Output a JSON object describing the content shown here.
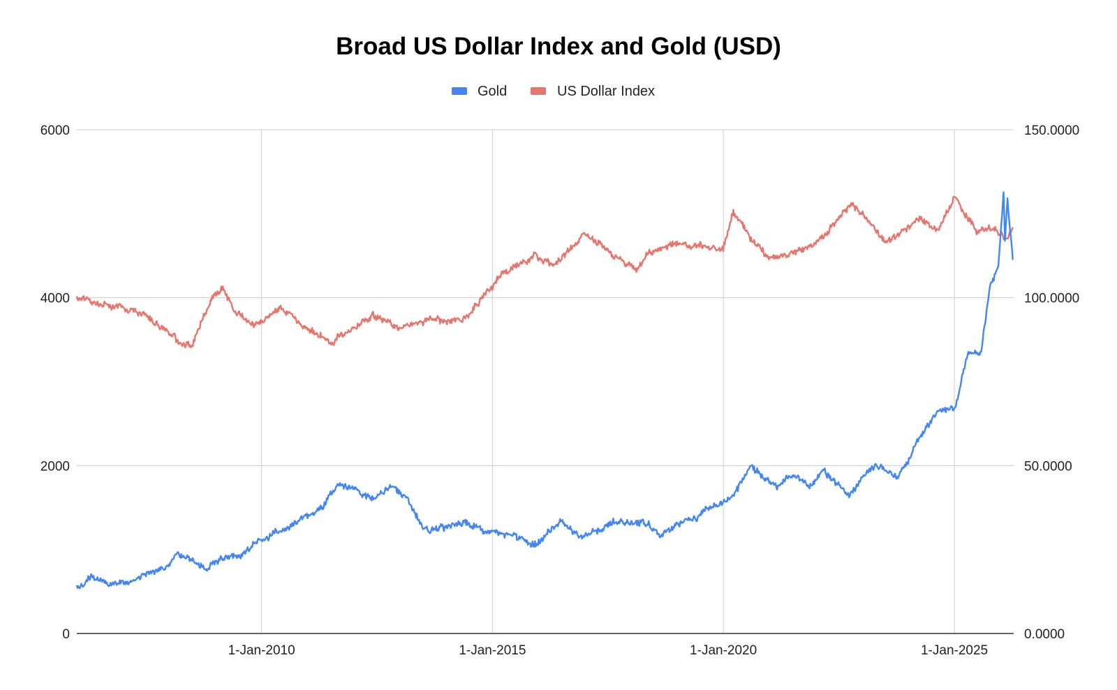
{
  "chart_data": {
    "type": "line",
    "title": "Broad US Dollar Index and Gold (USD)",
    "xlabel": "",
    "ylabel": "",
    "y2label": "",
    "legend_position": "top",
    "grid": true,
    "x_range": [
      "2006-01-01",
      "2026-04-15"
    ],
    "x_ticks": [
      {
        "date": "2010-01-01",
        "label": "1-Jan-2010"
      },
      {
        "date": "2015-01-01",
        "label": "1-Jan-2015"
      },
      {
        "date": "2020-01-01",
        "label": "1-Jan-2020"
      },
      {
        "date": "2025-01-01",
        "label": "1-Jan-2025"
      }
    ],
    "y_left": {
      "range": [
        0,
        6000
      ],
      "ticks": [
        {
          "value": 0,
          "label": "0"
        },
        {
          "value": 2000,
          "label": "2000"
        },
        {
          "value": 4000,
          "label": "4000"
        },
        {
          "value": 6000,
          "label": "6000"
        }
      ]
    },
    "y_right": {
      "range": [
        0,
        150
      ],
      "ticks": [
        {
          "value": 0,
          "label": "0.0000"
        },
        {
          "value": 50,
          "label": "50.0000"
        },
        {
          "value": 100,
          "label": "100.0000"
        },
        {
          "value": 150,
          "label": "150.0000"
        }
      ]
    },
    "series": [
      {
        "name": "Gold",
        "axis": "left",
        "color": "#4285f4",
        "points": [
          [
            "2006-01-01",
            530
          ],
          [
            "2006-05-01",
            680
          ],
          [
            "2006-10-01",
            600
          ],
          [
            "2007-06-01",
            660
          ],
          [
            "2007-12-01",
            800
          ],
          [
            "2008-03-01",
            960
          ],
          [
            "2008-10-15",
            780
          ],
          [
            "2009-03-01",
            920
          ],
          [
            "2009-08-01",
            950
          ],
          [
            "2009-12-01",
            1110
          ],
          [
            "2010-06-01",
            1230
          ],
          [
            "2010-12-01",
            1400
          ],
          [
            "2011-05-01",
            1500
          ],
          [
            "2011-09-01",
            1800
          ],
          [
            "2012-01-01",
            1700
          ],
          [
            "2012-06-01",
            1600
          ],
          [
            "2012-10-01",
            1760
          ],
          [
            "2013-03-01",
            1600
          ],
          [
            "2013-06-30",
            1250
          ],
          [
            "2014-01-01",
            1250
          ],
          [
            "2014-06-01",
            1310
          ],
          [
            "2014-12-01",
            1200
          ],
          [
            "2015-06-01",
            1180
          ],
          [
            "2015-12-15",
            1060
          ],
          [
            "2016-07-01",
            1350
          ],
          [
            "2016-12-15",
            1130
          ],
          [
            "2017-09-01",
            1320
          ],
          [
            "2018-04-01",
            1330
          ],
          [
            "2018-08-15",
            1180
          ],
          [
            "2019-01-01",
            1290
          ],
          [
            "2019-06-01",
            1400
          ],
          [
            "2019-09-01",
            1500
          ],
          [
            "2020-03-01",
            1600
          ],
          [
            "2020-08-01",
            1970
          ],
          [
            "2021-03-01",
            1700
          ],
          [
            "2021-06-01",
            1880
          ],
          [
            "2021-12-01",
            1790
          ],
          [
            "2022-03-01",
            1960
          ],
          [
            "2022-09-15",
            1650
          ],
          [
            "2023-02-01",
            1900
          ],
          [
            "2023-05-01",
            2000
          ],
          [
            "2023-10-01",
            1850
          ],
          [
            "2024-01-01",
            2050
          ],
          [
            "2024-04-01",
            2350
          ],
          [
            "2024-10-01",
            2700
          ],
          [
            "2025-01-01",
            2650
          ],
          [
            "2025-04-15",
            3300
          ],
          [
            "2025-08-01",
            3350
          ],
          [
            "2025-10-15",
            4200
          ],
          [
            "2025-12-15",
            4400
          ],
          [
            "2026-01-25",
            5250
          ],
          [
            "2026-02-05",
            4700
          ],
          [
            "2026-02-25",
            5200
          ],
          [
            "2026-03-15",
            4850
          ],
          [
            "2026-04-08",
            4450
          ]
        ]
      },
      {
        "name": "US Dollar Index",
        "axis": "right",
        "color": "#e8756b",
        "points": [
          [
            "2006-01-01",
            100
          ],
          [
            "2006-06-01",
            98.5
          ],
          [
            "2007-01-01",
            97
          ],
          [
            "2007-06-01",
            95
          ],
          [
            "2008-03-15",
            87
          ],
          [
            "2008-07-01",
            86
          ],
          [
            "2008-12-01",
            100
          ],
          [
            "2009-03-01",
            103
          ],
          [
            "2009-06-01",
            96
          ],
          [
            "2009-12-01",
            92
          ],
          [
            "2010-06-01",
            97
          ],
          [
            "2011-07-01",
            86.5
          ],
          [
            "2012-01-01",
            91
          ],
          [
            "2012-06-01",
            95
          ],
          [
            "2013-01-01",
            91
          ],
          [
            "2013-06-01",
            93
          ],
          [
            "2014-06-01",
            94
          ],
          [
            "2015-03-15",
            107
          ],
          [
            "2015-12-01",
            112
          ],
          [
            "2016-05-01",
            110
          ],
          [
            "2016-12-31",
            119
          ],
          [
            "2017-06-01",
            115
          ],
          [
            "2018-02-01",
            108
          ],
          [
            "2018-06-01",
            113
          ],
          [
            "2018-12-01",
            116
          ],
          [
            "2019-06-01",
            116
          ],
          [
            "2019-12-31",
            115
          ],
          [
            "2020-03-20",
            126
          ],
          [
            "2020-08-01",
            118
          ],
          [
            "2021-01-01",
            111
          ],
          [
            "2021-06-01",
            113
          ],
          [
            "2022-01-01",
            116
          ],
          [
            "2022-10-15",
            128
          ],
          [
            "2023-03-01",
            122
          ],
          [
            "2023-07-01",
            117
          ],
          [
            "2023-12-01",
            120
          ],
          [
            "2024-04-01",
            124
          ],
          [
            "2024-09-01",
            120
          ],
          [
            "2025-01-10",
            130
          ],
          [
            "2025-04-15",
            124
          ],
          [
            "2025-07-01",
            120
          ],
          [
            "2025-10-01",
            121
          ],
          [
            "2026-01-15",
            119
          ],
          [
            "2026-02-20",
            117
          ],
          [
            "2026-04-08",
            121
          ]
        ]
      }
    ]
  }
}
